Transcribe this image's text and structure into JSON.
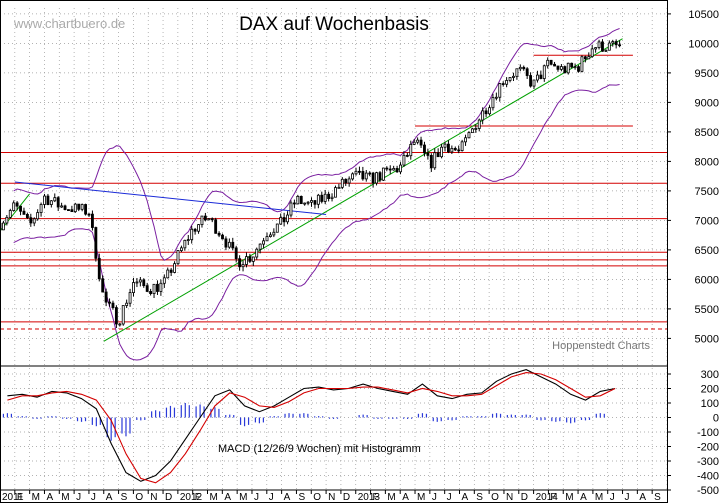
{
  "header": {
    "title": "DAX auf Wochenbasis",
    "watermark": "www.chartbuero.de",
    "source": "Hoppenstedt Charts",
    "macd_label": "MACD (12/26/9 Wochen) mit Histogramm"
  },
  "colors": {
    "candle": "#000000",
    "hline": "#d40000",
    "trend_green": "#00a000",
    "trend_blue": "#1a2ad8",
    "bollinger": "#7a1fa0",
    "macd_line": "#000000",
    "macd_signal": "#d40000",
    "histogram": "#2a3ad8",
    "grid": "#999999"
  },
  "chart_data": [
    {
      "type": "candlestick",
      "title": "DAX auf Wochenbasis",
      "ylim": [
        4600,
        10600
      ],
      "y_ticks": [
        5000,
        5500,
        6000,
        6500,
        7000,
        7500,
        8000,
        8500,
        9000,
        9500,
        10000,
        10500
      ],
      "x_range": [
        "2011-01",
        "2014-09"
      ],
      "x_tick_labels": [
        "2011",
        "F",
        "M",
        "A",
        "M",
        "J",
        "J",
        "A",
        "S",
        "O",
        "N",
        "D",
        "2012",
        "F",
        "M",
        "A",
        "M",
        "J",
        "J",
        "A",
        "S",
        "O",
        "N",
        "D",
        "2013",
        "F",
        "M",
        "A",
        "M",
        "J",
        "J",
        "A",
        "S",
        "O",
        "N",
        "D",
        "2014",
        "F",
        "M",
        "A",
        "M",
        "J",
        "J",
        "A",
        "S"
      ],
      "grid": true,
      "horizontal_lines": [
        {
          "value": 8150,
          "style": "solid"
        },
        {
          "value": 7630,
          "style": "solid"
        },
        {
          "value": 7030,
          "style": "solid"
        },
        {
          "value": 6460,
          "style": "solid"
        },
        {
          "value": 6330,
          "style": "solid"
        },
        {
          "value": 6230,
          "style": "solid"
        },
        {
          "value": 5280,
          "style": "solid"
        },
        {
          "value": 5160,
          "style": "dashed"
        },
        {
          "value": 8600,
          "from": "2013-05",
          "style": "solid"
        },
        {
          "value": 9800,
          "from": "2014-01",
          "style": "solid"
        }
      ],
      "trendlines": [
        {
          "color": "green",
          "from": [
            "2011-08",
            4950
          ],
          "to": [
            "2014-07",
            10080
          ]
        },
        {
          "color": "blue",
          "from": [
            "2011-02",
            7650
          ],
          "to": [
            "2012-11",
            7100
          ]
        },
        {
          "color": "green",
          "from": [
            "2010-12",
            6500
          ],
          "to": [
            "2011-03",
            7450
          ]
        }
      ],
      "series": [
        {
          "values": [
            {
              "x": "2011-01",
              "close": 6950
            },
            {
              "x": "2011-02",
              "close": 7250
            },
            {
              "x": "2011-03",
              "close": 6900
            },
            {
              "x": "2011-04",
              "close": 7400
            },
            {
              "x": "2011-05",
              "close": 7250
            },
            {
              "x": "2011-06",
              "close": 7200
            },
            {
              "x": "2011-07",
              "close": 7150
            },
            {
              "x": "2011-08",
              "close": 5650
            },
            {
              "x": "2011-09",
              "close": 5300
            },
            {
              "x": "2011-10",
              "close": 5950
            },
            {
              "x": "2011-11",
              "close": 5850
            },
            {
              "x": "2011-12",
              "close": 5900
            },
            {
              "x": "2012-01",
              "close": 6400
            },
            {
              "x": "2012-02",
              "close": 6850
            },
            {
              "x": "2012-03",
              "close": 7050
            },
            {
              "x": "2012-04",
              "close": 6750
            },
            {
              "x": "2012-05",
              "close": 6300
            },
            {
              "x": "2012-06",
              "close": 6400
            },
            {
              "x": "2012-07",
              "close": 6800
            },
            {
              "x": "2012-08",
              "close": 6950
            },
            {
              "x": "2012-09",
              "close": 7350
            },
            {
              "x": "2012-10",
              "close": 7250
            },
            {
              "x": "2012-11",
              "close": 7400
            },
            {
              "x": "2012-12",
              "close": 7600
            },
            {
              "x": "2013-01",
              "close": 7750
            },
            {
              "x": "2013-02",
              "close": 7700
            },
            {
              "x": "2013-03",
              "close": 7800
            },
            {
              "x": "2013-04",
              "close": 7900
            },
            {
              "x": "2013-05",
              "close": 8350
            },
            {
              "x": "2013-06",
              "close": 7950
            },
            {
              "x": "2013-07",
              "close": 8300
            },
            {
              "x": "2013-08",
              "close": 8150
            },
            {
              "x": "2013-09",
              "close": 8600
            },
            {
              "x": "2013-10",
              "close": 9000
            },
            {
              "x": "2013-11",
              "close": 9400
            },
            {
              "x": "2013-12",
              "close": 9550
            },
            {
              "x": "2014-01",
              "close": 9300
            },
            {
              "x": "2014-02",
              "close": 9650
            },
            {
              "x": "2014-03",
              "close": 9550
            },
            {
              "x": "2014-04",
              "close": 9600
            },
            {
              "x": "2014-05",
              "close": 9950
            },
            {
              "x": "2014-06",
              "close": 9950
            }
          ]
        }
      ]
    },
    {
      "type": "line",
      "title": "MACD (12/26/9 Wochen) mit Histogramm",
      "ylim": [
        -500,
        300
      ],
      "y_ticks": [
        300,
        200,
        100,
        0,
        -100,
        -200,
        -300,
        -400,
        -500
      ],
      "x_range": [
        "2011-01",
        "2014-09"
      ],
      "grid": true,
      "series": [
        {
          "color": "black",
          "x": [
            "2011-01",
            "2011-02",
            "2011-03",
            "2011-04",
            "2011-05",
            "2011-06",
            "2011-07",
            "2011-08",
            "2011-09",
            "2011-10",
            "2011-11",
            "2011-12",
            "2012-01",
            "2012-02",
            "2012-03",
            "2012-04",
            "2012-05",
            "2012-06",
            "2012-07",
            "2012-08",
            "2012-09",
            "2012-10",
            "2012-11",
            "2012-12",
            "2013-01",
            "2013-02",
            "2013-03",
            "2013-04",
            "2013-05",
            "2013-06",
            "2013-07",
            "2013-08",
            "2013-09",
            "2013-10",
            "2013-11",
            "2013-12",
            "2014-01",
            "2014-02",
            "2014-03",
            "2014-04",
            "2014-05",
            "2014-06"
          ],
          "values": [
            150,
            160,
            140,
            180,
            170,
            130,
            60,
            -180,
            -380,
            -440,
            -400,
            -300,
            -150,
            0,
            150,
            190,
            80,
            40,
            80,
            140,
            200,
            210,
            190,
            200,
            230,
            200,
            180,
            160,
            230,
            150,
            130,
            160,
            170,
            250,
            300,
            330,
            280,
            230,
            160,
            120,
            180,
            200
          ]
        },
        {
          "color": "red",
          "x": [
            "2011-01",
            "2011-02",
            "2011-03",
            "2011-04",
            "2011-05",
            "2011-06",
            "2011-07",
            "2011-08",
            "2011-09",
            "2011-10",
            "2011-11",
            "2011-12",
            "2012-01",
            "2012-02",
            "2012-03",
            "2012-04",
            "2012-05",
            "2012-06",
            "2012-07",
            "2012-08",
            "2012-09",
            "2012-10",
            "2012-11",
            "2012-12",
            "2013-01",
            "2013-02",
            "2013-03",
            "2013-04",
            "2013-05",
            "2013-06",
            "2013-07",
            "2013-08",
            "2013-09",
            "2013-10",
            "2013-11",
            "2013-12",
            "2014-01",
            "2014-02",
            "2014-03",
            "2014-04",
            "2014-05",
            "2014-06"
          ],
          "values": [
            120,
            150,
            150,
            170,
            180,
            160,
            120,
            -20,
            -250,
            -420,
            -450,
            -380,
            -250,
            -90,
            80,
            170,
            140,
            80,
            70,
            110,
            170,
            200,
            200,
            200,
            210,
            210,
            190,
            170,
            200,
            180,
            150,
            150,
            160,
            220,
            280,
            310,
            300,
            260,
            200,
            140,
            150,
            200
          ]
        }
      ],
      "histogram_values": [
        30,
        10,
        -10,
        10,
        -10,
        -30,
        -60,
        -160,
        -130,
        -20,
        50,
        80,
        100,
        90,
        70,
        20,
        -60,
        -40,
        10,
        30,
        30,
        10,
        -10,
        0,
        20,
        -10,
        -10,
        -10,
        30,
        -30,
        -20,
        10,
        10,
        30,
        20,
        20,
        -20,
        -30,
        -40,
        -20,
        30,
        0
      ]
    }
  ]
}
